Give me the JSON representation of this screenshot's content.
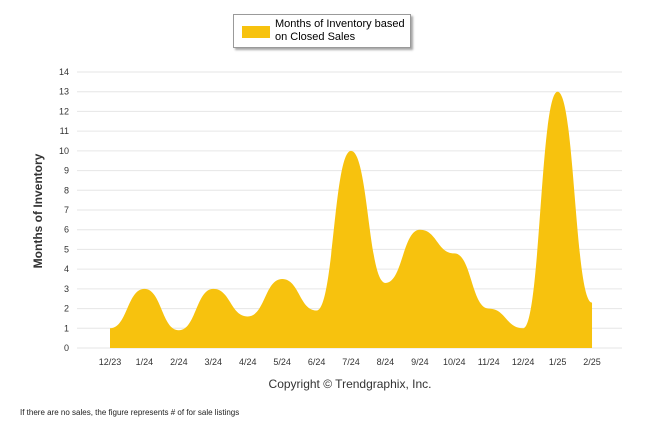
{
  "chart_data": {
    "type": "area",
    "categories": [
      "12/23",
      "1/24",
      "2/24",
      "3/24",
      "4/24",
      "5/24",
      "6/24",
      "7/24",
      "8/24",
      "9/24",
      "10/24",
      "11/24",
      "12/24",
      "1/25",
      "2/25"
    ],
    "series": [
      {
        "name": "Months of Inventory based on Closed Sales",
        "values": [
          1.0,
          3.0,
          0.9,
          3.0,
          1.6,
          3.5,
          1.9,
          10.0,
          3.3,
          6.0,
          4.8,
          2.0,
          1.0,
          13.0,
          2.3
        ]
      }
    ],
    "ylabel": "Months of Inventory",
    "xlabel": "",
    "ylim": [
      0,
      14
    ],
    "yticks": [
      0,
      1,
      2,
      3,
      4,
      5,
      6,
      7,
      8,
      9,
      10,
      11,
      12,
      13,
      14
    ],
    "grid": true,
    "legend_position": "top-center",
    "colors": {
      "fill": "#F7C20E",
      "grid": "#e6e6e6"
    }
  },
  "legend": {
    "label": "Months of Inventory based on Closed Sales"
  },
  "copyright": "Copyright © Trendgraphix, Inc.",
  "footnote": "If there are no sales, the figure represents # of for sale listings"
}
